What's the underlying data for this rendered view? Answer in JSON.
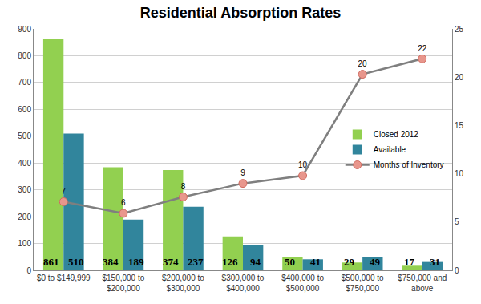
{
  "chart_data": {
    "type": "bar",
    "title": "Residential Absorption Rates",
    "categories": [
      "$0 to $149,999",
      "$150,000 to $200,000",
      "$200,000 to $300,000",
      "$300,000 to $400,000",
      "$400,000 to $500,000",
      "$500,000 to $750,000",
      "$750,000 and above"
    ],
    "series": [
      {
        "name": "Closed 2012",
        "color": "#92d050",
        "values": [
          861,
          384,
          374,
          126,
          50,
          29,
          17
        ]
      },
      {
        "name": "Available",
        "color": "#31859c",
        "values": [
          510,
          189,
          237,
          94,
          41,
          49,
          31
        ]
      },
      {
        "name": "Months of Inventory",
        "type": "line",
        "axis": "y2",
        "color": "#7f7f7f",
        "marker": "circle",
        "values": [
          7.1,
          5.9,
          7.6,
          9.0,
          9.8,
          20.3,
          21.9
        ],
        "value_labels": [
          "7",
          "6",
          "8",
          "9",
          "10",
          "20",
          "22"
        ]
      }
    ],
    "ylim": [
      0,
      900
    ],
    "yticks": [
      0,
      100,
      200,
      300,
      400,
      500,
      600,
      700,
      800,
      900
    ],
    "y2lim": [
      0,
      25
    ],
    "y2ticks": [
      0,
      5,
      10,
      15,
      20,
      25
    ],
    "grid": true,
    "legend": "right",
    "data_labels": true
  }
}
